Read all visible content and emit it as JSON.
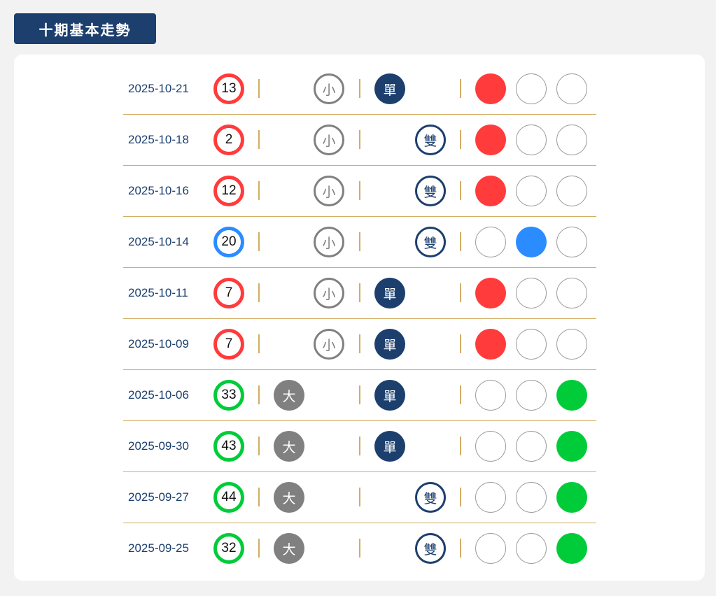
{
  "header": {
    "title": "十期基本走勢"
  },
  "labels": {
    "big": "大",
    "small": "小",
    "odd": "單",
    "even": "雙"
  },
  "colors": {
    "red": "#ff3b3b",
    "blue": "#2a8cff",
    "green": "#00cc3a",
    "navy": "#1c3f6e",
    "gold": "#d2ad63"
  },
  "rows": [
    {
      "date": "2025-10-21",
      "number": "13",
      "color": "red",
      "size": "small",
      "parity": "odd"
    },
    {
      "date": "2025-10-18",
      "number": "2",
      "color": "red",
      "size": "small",
      "parity": "even"
    },
    {
      "date": "2025-10-16",
      "number": "12",
      "color": "red",
      "size": "small",
      "parity": "even"
    },
    {
      "date": "2025-10-14",
      "number": "20",
      "color": "blue",
      "size": "small",
      "parity": "even"
    },
    {
      "date": "2025-10-11",
      "number": "7",
      "color": "red",
      "size": "small",
      "parity": "odd"
    },
    {
      "date": "2025-10-09",
      "number": "7",
      "color": "red",
      "size": "small",
      "parity": "odd"
    },
    {
      "date": "2025-10-06",
      "number": "33",
      "color": "green",
      "size": "big",
      "parity": "odd"
    },
    {
      "date": "2025-09-30",
      "number": "43",
      "color": "green",
      "size": "big",
      "parity": "odd"
    },
    {
      "date": "2025-09-27",
      "number": "44",
      "color": "green",
      "size": "big",
      "parity": "even"
    },
    {
      "date": "2025-09-25",
      "number": "32",
      "color": "green",
      "size": "big",
      "parity": "even"
    }
  ]
}
